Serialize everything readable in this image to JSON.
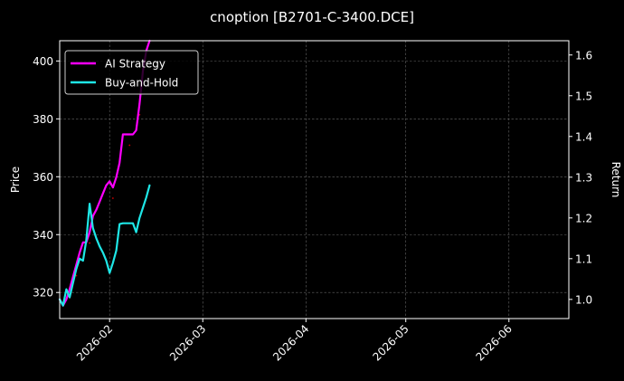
{
  "chart_data": {
    "type": "line",
    "title": "cnoption [B2701-C-3400.DCE]",
    "ylabel": "Price",
    "y2label": "Return",
    "xlim": [
      "2026-01-17",
      "2026-06-19"
    ],
    "ylim": [
      311,
      407
    ],
    "y2lim": [
      0.953,
      1.635
    ],
    "xticks": [
      "2026-02",
      "2026-03",
      "2026-04",
      "2026-05",
      "2026-06"
    ],
    "xtick_dates": [
      "2026-02-01",
      "2026-03-01",
      "2026-04-01",
      "2026-05-01",
      "2026-06-01"
    ],
    "yticks": [
      320,
      340,
      360,
      380,
      400
    ],
    "y2ticks": [
      1.0,
      1.1,
      1.2,
      1.3,
      1.4,
      1.5,
      1.6
    ],
    "grid": true,
    "legend": "upper left",
    "series": [
      {
        "name": "AI Strategy",
        "axis": "right",
        "color": "#ff00ff",
        "x": [
          "2026-01-17",
          "2026-01-18",
          "2026-01-19",
          "2026-01-20",
          "2026-01-21",
          "2026-01-22",
          "2026-01-23",
          "2026-01-24",
          "2026-01-25",
          "2026-01-26",
          "2026-01-27",
          "2026-01-28",
          "2026-01-29",
          "2026-01-30",
          "2026-01-31",
          "2026-02-01",
          "2026-02-02",
          "2026-02-03",
          "2026-02-04",
          "2026-02-05",
          "2026-02-06",
          "2026-02-07",
          "2026-02-08",
          "2026-02-09",
          "2026-02-10",
          "2026-02-11",
          "2026-02-12",
          "2026-02-13"
        ],
        "y": [
          1.0,
          0.985,
          1.0,
          1.025,
          1.055,
          1.085,
          1.115,
          1.14,
          1.14,
          1.165,
          1.205,
          1.22,
          1.24,
          1.26,
          1.28,
          1.29,
          1.275,
          1.3,
          1.335,
          1.405,
          1.405,
          1.405,
          1.405,
          1.415,
          1.48,
          1.56,
          1.61,
          1.635
        ]
      },
      {
        "name": "Buy-and-Hold",
        "axis": "right",
        "color": "#1ee6e6",
        "x": [
          "2026-01-17",
          "2026-01-18",
          "2026-01-19",
          "2026-01-20",
          "2026-01-21",
          "2026-01-22",
          "2026-01-23",
          "2026-01-24",
          "2026-01-25",
          "2026-01-26",
          "2026-01-27",
          "2026-01-28",
          "2026-01-29",
          "2026-01-30",
          "2026-01-31",
          "2026-02-01",
          "2026-02-02",
          "2026-02-03",
          "2026-02-04",
          "2026-02-05",
          "2026-02-06",
          "2026-02-07",
          "2026-02-08",
          "2026-02-09",
          "2026-02-10",
          "2026-02-11",
          "2026-02-12",
          "2026-02-13"
        ],
        "y": [
          1.0,
          0.985,
          1.025,
          1.005,
          1.04,
          1.075,
          1.1,
          1.095,
          1.145,
          1.235,
          1.175,
          1.15,
          1.13,
          1.115,
          1.095,
          1.065,
          1.09,
          1.12,
          1.185,
          1.187,
          1.187,
          1.187,
          1.187,
          1.165,
          1.2,
          1.225,
          1.25,
          1.28
        ]
      }
    ]
  }
}
